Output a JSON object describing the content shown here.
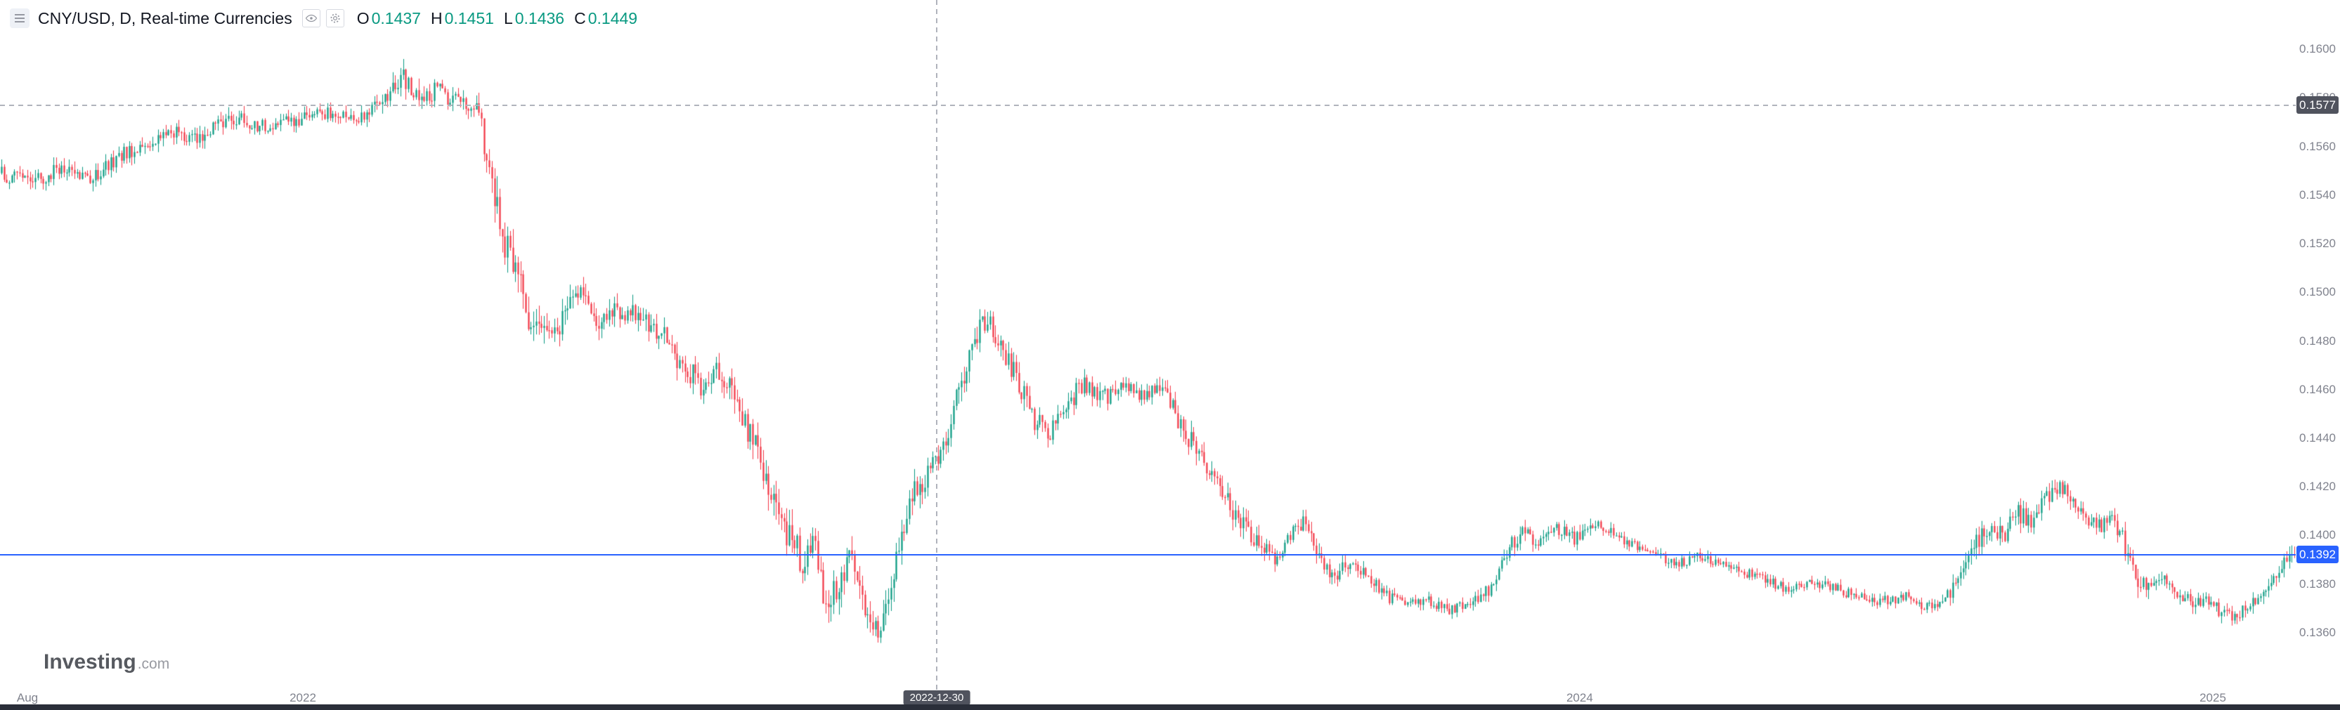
{
  "legend": {
    "title": "CNY/USD, D, Real-time Currencies",
    "ohlc": [
      {
        "k": "O",
        "v": "0.1437"
      },
      {
        "k": "H",
        "v": "0.1451"
      },
      {
        "k": "L",
        "v": "0.1436"
      },
      {
        "k": "C",
        "v": "0.1449"
      }
    ]
  },
  "watermark": {
    "brand": "Investing",
    "suffix": ".com"
  },
  "chart_data": {
    "type": "candlestick",
    "title": "CNY/USD, D, Real-time Currencies",
    "y_axis": {
      "min": 0.136,
      "max": 0.16,
      "tick_step": 0.002,
      "ticks": [
        0.16,
        0.158,
        0.156,
        0.154,
        0.152,
        0.15,
        0.148,
        0.146,
        0.144,
        0.142,
        0.14,
        0.138,
        0.136
      ]
    },
    "x_axis": {
      "start": "Aug 2021",
      "end": "Feb 2025",
      "ticks": [
        {
          "label": "Aug",
          "t": 0.012
        },
        {
          "label": "2022",
          "t": 0.132
        },
        {
          "label": "2024",
          "t": 0.688
        },
        {
          "label": "2025",
          "t": 0.964
        }
      ]
    },
    "markers": {
      "alert_price": 0.1577,
      "alert_label": "0.1577",
      "last_price": 0.1392,
      "last_label": "0.1392",
      "vline_t": 0.408,
      "vline_date": "2022-12-30"
    },
    "colors": {
      "up": "#089981",
      "down": "#f23645",
      "last_line": "#2962ff",
      "badge_dark": "#50535e",
      "axis_text": "#80838e"
    },
    "candle_count": 880,
    "keypoints": [
      [
        0.0,
        0.1549,
        0.0006
      ],
      [
        0.012,
        0.1544,
        0.0006
      ],
      [
        0.025,
        0.1551,
        0.0006
      ],
      [
        0.038,
        0.1546,
        0.0006
      ],
      [
        0.05,
        0.1555,
        0.0006
      ],
      [
        0.062,
        0.1561,
        0.0006
      ],
      [
        0.075,
        0.1567,
        0.0006
      ],
      [
        0.085,
        0.1563,
        0.0006
      ],
      [
        0.1,
        0.1572,
        0.0006
      ],
      [
        0.115,
        0.1568,
        0.0005
      ],
      [
        0.13,
        0.1571,
        0.0005
      ],
      [
        0.145,
        0.1574,
        0.0005
      ],
      [
        0.158,
        0.1571,
        0.0005
      ],
      [
        0.168,
        0.158,
        0.0007
      ],
      [
        0.175,
        0.1589,
        0.0008
      ],
      [
        0.182,
        0.1579,
        0.0008
      ],
      [
        0.19,
        0.1583,
        0.0007
      ],
      [
        0.2,
        0.1578,
        0.0006
      ],
      [
        0.207,
        0.1576,
        0.0006
      ],
      [
        0.212,
        0.1556,
        0.0013
      ],
      [
        0.218,
        0.1524,
        0.0015
      ],
      [
        0.225,
        0.1505,
        0.0013
      ],
      [
        0.232,
        0.1485,
        0.0012
      ],
      [
        0.238,
        0.1478,
        0.0012
      ],
      [
        0.245,
        0.149,
        0.001
      ],
      [
        0.252,
        0.1498,
        0.0009
      ],
      [
        0.26,
        0.1487,
        0.0009
      ],
      [
        0.268,
        0.1494,
        0.0008
      ],
      [
        0.278,
        0.149,
        0.0008
      ],
      [
        0.288,
        0.1483,
        0.0008
      ],
      [
        0.297,
        0.147,
        0.0009
      ],
      [
        0.305,
        0.1462,
        0.0009
      ],
      [
        0.312,
        0.147,
        0.0008
      ],
      [
        0.32,
        0.1455,
        0.001
      ],
      [
        0.328,
        0.1437,
        0.0011
      ],
      [
        0.336,
        0.1418,
        0.0012
      ],
      [
        0.343,
        0.14,
        0.0012
      ],
      [
        0.349,
        0.139,
        0.0012
      ],
      [
        0.354,
        0.1398,
        0.001
      ],
      [
        0.36,
        0.1368,
        0.0012
      ],
      [
        0.366,
        0.1385,
        0.0011
      ],
      [
        0.371,
        0.1391,
        0.001
      ],
      [
        0.377,
        0.137,
        0.0011
      ],
      [
        0.382,
        0.1363,
        0.001
      ],
      [
        0.387,
        0.1372,
        0.001
      ],
      [
        0.392,
        0.1398,
        0.0011
      ],
      [
        0.398,
        0.1418,
        0.001
      ],
      [
        0.404,
        0.1426,
        0.0009
      ],
      [
        0.41,
        0.1432,
        0.0009
      ],
      [
        0.416,
        0.1455,
        0.001
      ],
      [
        0.423,
        0.1477,
        0.001
      ],
      [
        0.429,
        0.1489,
        0.0009
      ],
      [
        0.436,
        0.1478,
        0.0008
      ],
      [
        0.443,
        0.1464,
        0.0008
      ],
      [
        0.45,
        0.1448,
        0.0008
      ],
      [
        0.457,
        0.1443,
        0.0008
      ],
      [
        0.464,
        0.1454,
        0.0008
      ],
      [
        0.472,
        0.1462,
        0.0007
      ],
      [
        0.481,
        0.1457,
        0.0007
      ],
      [
        0.49,
        0.1462,
        0.0006
      ],
      [
        0.499,
        0.1457,
        0.0006
      ],
      [
        0.507,
        0.1461,
        0.0006
      ],
      [
        0.515,
        0.1444,
        0.0008
      ],
      [
        0.524,
        0.143,
        0.0008
      ],
      [
        0.532,
        0.1418,
        0.0008
      ],
      [
        0.541,
        0.1404,
        0.0008
      ],
      [
        0.549,
        0.1397,
        0.0007
      ],
      [
        0.556,
        0.139,
        0.0007
      ],
      [
        0.562,
        0.1401,
        0.0007
      ],
      [
        0.568,
        0.1407,
        0.0007
      ],
      [
        0.575,
        0.139,
        0.0007
      ],
      [
        0.581,
        0.1382,
        0.0006
      ],
      [
        0.588,
        0.139,
        0.0006
      ],
      [
        0.595,
        0.1383,
        0.0005
      ],
      [
        0.603,
        0.1376,
        0.0005
      ],
      [
        0.612,
        0.1371,
        0.0004
      ],
      [
        0.622,
        0.1373,
        0.0004
      ],
      [
        0.632,
        0.1369,
        0.0004
      ],
      [
        0.641,
        0.1372,
        0.0004
      ],
      [
        0.648,
        0.1377,
        0.0005
      ],
      [
        0.655,
        0.1391,
        0.0006
      ],
      [
        0.662,
        0.1401,
        0.0006
      ],
      [
        0.67,
        0.1398,
        0.0005
      ],
      [
        0.678,
        0.1403,
        0.0005
      ],
      [
        0.686,
        0.1399,
        0.0005
      ],
      [
        0.694,
        0.1404,
        0.0005
      ],
      [
        0.702,
        0.1401,
        0.0004
      ],
      [
        0.711,
        0.1396,
        0.0004
      ],
      [
        0.72,
        0.1392,
        0.0004
      ],
      [
        0.73,
        0.1389,
        0.0004
      ],
      [
        0.74,
        0.1391,
        0.0004
      ],
      [
        0.75,
        0.1388,
        0.0004
      ],
      [
        0.76,
        0.1385,
        0.0004
      ],
      [
        0.77,
        0.1381,
        0.0004
      ],
      [
        0.78,
        0.1378,
        0.0004
      ],
      [
        0.79,
        0.1381,
        0.0004
      ],
      [
        0.8,
        0.1378,
        0.0004
      ],
      [
        0.81,
        0.1375,
        0.0004
      ],
      [
        0.82,
        0.1373,
        0.0004
      ],
      [
        0.83,
        0.1375,
        0.0004
      ],
      [
        0.84,
        0.137,
        0.0004
      ],
      [
        0.848,
        0.1374,
        0.0005
      ],
      [
        0.855,
        0.1385,
        0.0007
      ],
      [
        0.861,
        0.1398,
        0.0008
      ],
      [
        0.867,
        0.1404,
        0.0007
      ],
      [
        0.873,
        0.14,
        0.0007
      ],
      [
        0.879,
        0.1409,
        0.0007
      ],
      [
        0.885,
        0.1406,
        0.0006
      ],
      [
        0.891,
        0.1414,
        0.0006
      ],
      [
        0.897,
        0.1421,
        0.0006
      ],
      [
        0.903,
        0.1416,
        0.0006
      ],
      [
        0.909,
        0.1407,
        0.0006
      ],
      [
        0.915,
        0.1404,
        0.0006
      ],
      [
        0.92,
        0.1408,
        0.0006
      ],
      [
        0.926,
        0.1396,
        0.0008
      ],
      [
        0.932,
        0.1382,
        0.0008
      ],
      [
        0.938,
        0.1378,
        0.0006
      ],
      [
        0.944,
        0.1382,
        0.0005
      ],
      [
        0.95,
        0.1376,
        0.0005
      ],
      [
        0.956,
        0.1372,
        0.0005
      ],
      [
        0.962,
        0.1374,
        0.0005
      ],
      [
        0.968,
        0.1368,
        0.0005
      ],
      [
        0.974,
        0.1366,
        0.0005
      ],
      [
        0.98,
        0.1371,
        0.0005
      ],
      [
        0.986,
        0.1377,
        0.0006
      ],
      [
        0.992,
        0.1385,
        0.0006
      ],
      [
        1.0,
        0.1392,
        0.0006
      ]
    ]
  }
}
